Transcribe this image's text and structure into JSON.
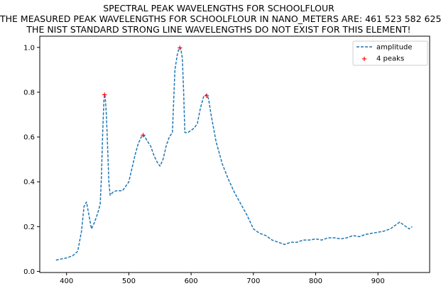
{
  "chart_data": {
    "type": "line",
    "title_lines": [
      "SPECTRAL PEAK WAVELENGTHS FOR SCHOOLFLOUR",
      "THE MEASURED PEAK WAVELENGTHS FOR SCHOOLFLOUR IN NANO_METERS ARE: 461 523 582 625",
      "THE NIST STANDARD STRONG LINE WAVELENGTHS DO NOT EXIST FOR THIS ELEMENT!"
    ],
    "xlabel": "",
    "ylabel": "",
    "xlim": [
      357,
      983
    ],
    "ylim": [
      -0.005,
      1.05
    ],
    "xticks": [
      400,
      500,
      600,
      700,
      800,
      900
    ],
    "yticks": [
      0.0,
      0.2,
      0.4,
      0.6,
      0.8,
      1.0
    ],
    "xtick_labels": [
      "400",
      "500",
      "600",
      "700",
      "800",
      "900"
    ],
    "ytick_labels": [
      "0.0",
      "0.2",
      "0.4",
      "0.6",
      "0.8",
      "1.0"
    ],
    "legend": {
      "position": "top-right",
      "entries": [
        "amplitude",
        "4 peaks"
      ]
    },
    "grid": false,
    "series": [
      {
        "name": "amplitude",
        "style": "dashed",
        "color": "#1f77b4",
        "x": [
          383,
          390,
          400,
          410,
          418,
          424,
          428,
          432,
          436,
          440,
          445,
          450,
          454,
          456,
          458,
          460,
          461,
          462,
          464,
          466,
          468,
          470,
          475,
          480,
          490,
          500,
          505,
          510,
          515,
          520,
          523,
          527,
          530,
          535,
          540,
          545,
          550,
          555,
          560,
          565,
          570,
          574,
          578,
          580,
          582,
          584,
          586,
          588,
          590,
          595,
          600,
          605,
          610,
          615,
          620,
          625,
          628,
          632,
          640,
          650,
          660,
          670,
          680,
          690,
          700,
          710,
          720,
          730,
          740,
          750,
          760,
          770,
          780,
          790,
          800,
          810,
          820,
          830,
          840,
          850,
          860,
          870,
          880,
          890,
          900,
          910,
          920,
          930,
          935,
          940,
          945,
          950,
          955
        ],
        "y": [
          0.05,
          0.055,
          0.06,
          0.07,
          0.09,
          0.18,
          0.29,
          0.31,
          0.25,
          0.19,
          0.22,
          0.26,
          0.3,
          0.42,
          0.62,
          0.76,
          0.79,
          0.78,
          0.7,
          0.55,
          0.4,
          0.34,
          0.355,
          0.36,
          0.36,
          0.4,
          0.46,
          0.52,
          0.57,
          0.6,
          0.61,
          0.595,
          0.58,
          0.56,
          0.52,
          0.49,
          0.47,
          0.5,
          0.56,
          0.6,
          0.62,
          0.9,
          0.97,
          0.99,
          1.0,
          0.985,
          0.95,
          0.8,
          0.62,
          0.62,
          0.63,
          0.64,
          0.66,
          0.73,
          0.78,
          0.79,
          0.77,
          0.7,
          0.58,
          0.48,
          0.41,
          0.35,
          0.3,
          0.25,
          0.19,
          0.17,
          0.16,
          0.14,
          0.13,
          0.12,
          0.13,
          0.13,
          0.14,
          0.14,
          0.145,
          0.14,
          0.15,
          0.15,
          0.145,
          0.15,
          0.16,
          0.155,
          0.165,
          0.17,
          0.175,
          0.18,
          0.19,
          0.21,
          0.22,
          0.21,
          0.2,
          0.19,
          0.2
        ]
      }
    ],
    "peaks": {
      "name": "4 peaks",
      "color": "#ff0000",
      "x": [
        461,
        523,
        582,
        625
      ],
      "y": [
        0.79,
        0.61,
        1.0,
        0.785
      ]
    }
  }
}
